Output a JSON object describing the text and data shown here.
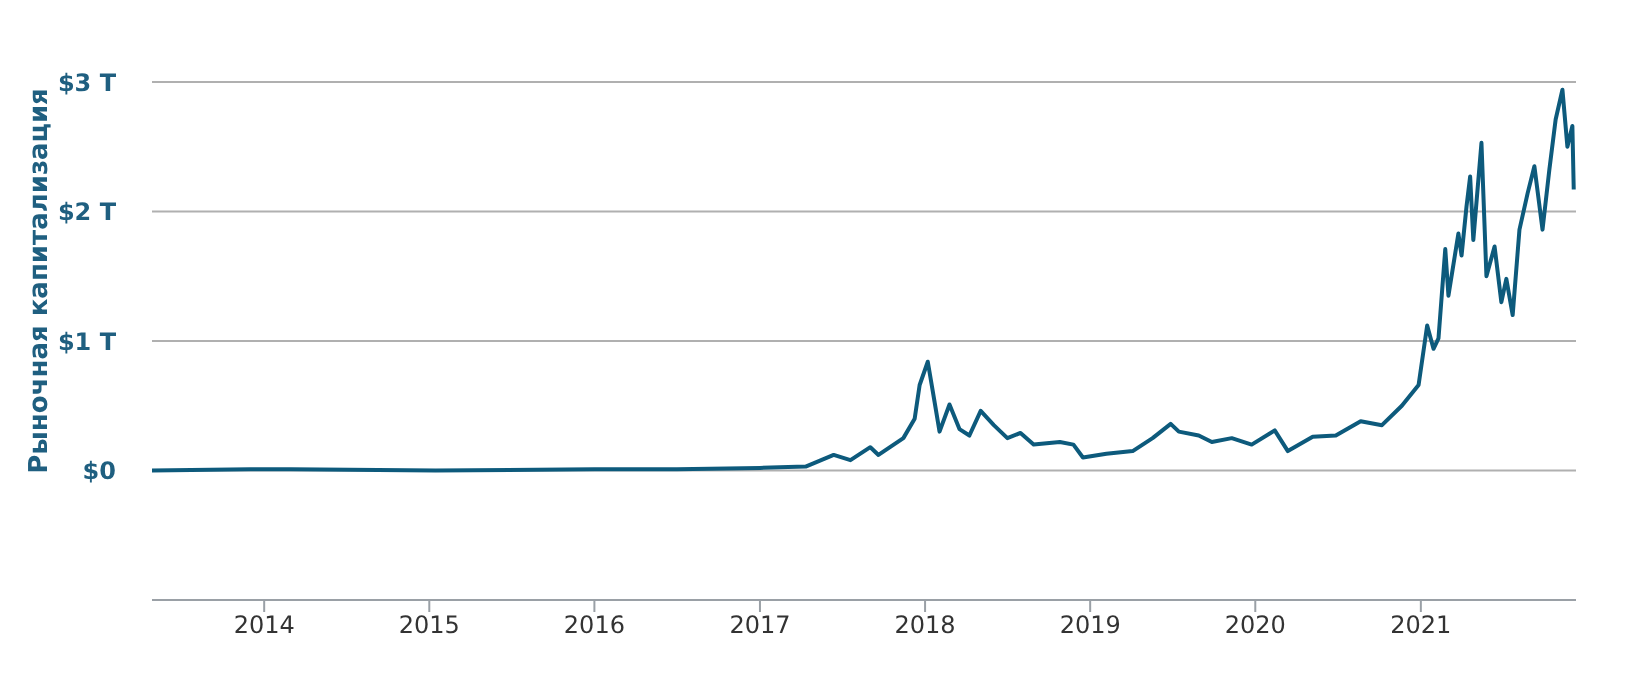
{
  "chart_data": {
    "type": "line",
    "ylabel": "Рыночная капитализация",
    "x": [
      "2013-04-28",
      "2013-12-01",
      "2014-03-01",
      "2015-01-15",
      "2016-01-01",
      "2016-07-01",
      "2017-01-01",
      "2017-04-12",
      "2017-06-13",
      "2017-07-20",
      "2017-09-02",
      "2017-09-20",
      "2017-11-14",
      "2017-12-09",
      "2017-12-20",
      "2018-01-07",
      "2018-01-22",
      "2018-02-02",
      "2018-02-24",
      "2018-03-18",
      "2018-04-09",
      "2018-05-04",
      "2018-06-02",
      "2018-07-02",
      "2018-07-31",
      "2018-08-29",
      "2018-10-26",
      "2018-11-25",
      "2018-12-16",
      "2019-02-06",
      "2019-04-05",
      "2019-05-19",
      "2019-06-28",
      "2019-07-16",
      "2019-08-29",
      "2019-09-27",
      "2019-11-10",
      "2019-12-24",
      "2020-02-13",
      "2020-03-13",
      "2020-05-07",
      "2020-06-27",
      "2020-08-21",
      "2020-10-07",
      "2020-11-20",
      "2020-12-27",
      "2021-01-15",
      "2021-01-29",
      "2021-02-09",
      "2021-02-24",
      "2021-03-03",
      "2021-03-25",
      "2021-04-01",
      "2021-04-12",
      "2021-04-20",
      "2021-04-27",
      "2021-05-15",
      "2021-05-26",
      "2021-06-13",
      "2021-06-28",
      "2021-07-09",
      "2021-07-23",
      "2021-08-07",
      "2021-08-25",
      "2021-09-09",
      "2021-09-27",
      "2021-10-12",
      "2021-10-26",
      "2021-11-10",
      "2021-11-21",
      "2021-12-02",
      "2021-12-05"
    ],
    "series": [
      {
        "color": "#0d5a7c",
        "values": [
          0,
          0.01,
          0.01,
          0,
          0.01,
          0.01,
          0.02,
          0.03,
          0.12,
          0.08,
          0.18,
          0.12,
          0.25,
          0.4,
          0.66,
          0.84,
          0.53,
          0.3,
          0.51,
          0.32,
          0.27,
          0.46,
          0.35,
          0.25,
          0.29,
          0.2,
          0.22,
          0.2,
          0.1,
          0.13,
          0.15,
          0.25,
          0.36,
          0.3,
          0.27,
          0.22,
          0.25,
          0.2,
          0.31,
          0.15,
          0.26,
          0.27,
          0.38,
          0.35,
          0.5,
          0.66,
          1.12,
          0.94,
          1.02,
          1.71,
          1.35,
          1.83,
          1.66,
          2.04,
          2.27,
          1.78,
          2.53,
          1.5,
          1.73,
          1.3,
          1.48,
          1.2,
          1.86,
          2.14,
          2.35,
          1.86,
          2.32,
          2.71,
          2.94,
          2.5,
          2.66,
          2.17
        ]
      }
    ],
    "xlim": [
      "2013-04-28",
      "2021-12-10"
    ],
    "xticks": [
      "2014",
      "2015",
      "2016",
      "2017",
      "2018",
      "2019",
      "2020",
      "2021"
    ],
    "ylim": [
      -1,
      3
    ],
    "yticks": [
      {
        "value": 0,
        "label": "$0"
      },
      {
        "value": 1,
        "label": "$1 T"
      },
      {
        "value": 2,
        "label": "$2 T"
      },
      {
        "value": 3,
        "label": "$3 T"
      }
    ],
    "grid": "y",
    "marker": "none",
    "line_style": "solid"
  }
}
